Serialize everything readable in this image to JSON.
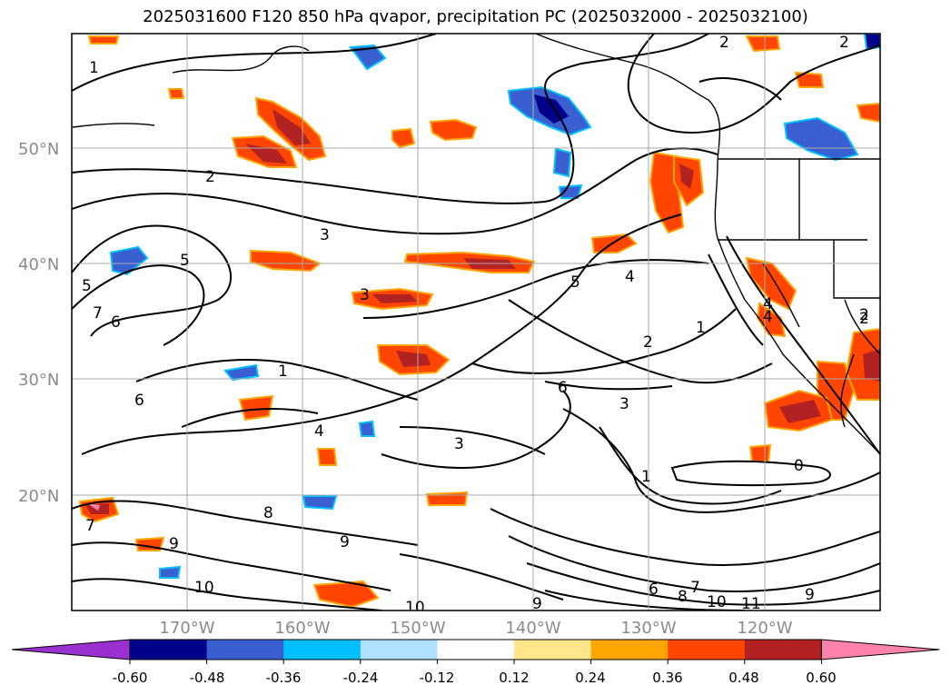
{
  "title": "2025031600 F120 850 hPa qvapor, precipitation PC (2025032000 - 2025032100)",
  "lat_labels": [
    "50°N",
    "40°N",
    "30°N",
    "20°N"
  ],
  "lon_labels": [
    "170°W",
    "160°W",
    "150°W",
    "140°W",
    "130°W",
    "120°W"
  ],
  "colorbar": {
    "tick_labels": [
      "-0.60",
      "-0.48",
      "-0.36",
      "-0.24",
      "-0.12",
      "0.12",
      "0.24",
      "0.36",
      "0.48",
      "0.60"
    ],
    "colors": [
      "#9b30d0",
      "#00008b",
      "#3a5fd0",
      "#00bfff",
      "#aee0ff",
      "#ffffff",
      "#ffe68a",
      "#ffa500",
      "#ff4500",
      "#b22222",
      "#ff82ab"
    ]
  },
  "contour_labels": [
    "1",
    "2",
    "2",
    "2",
    "3",
    "4",
    "5",
    "6",
    "7",
    "8",
    "9",
    "10",
    "11",
    "1",
    "2",
    "3",
    "4",
    "5",
    "6",
    "7",
    "0",
    "1",
    "2",
    "3",
    "3",
    "6",
    "4",
    "5",
    "6",
    "7",
    "8",
    "9",
    "10",
    "9",
    "9",
    "10",
    "4",
    "1",
    "2"
  ],
  "chart_data": {
    "type": "map",
    "lat_range": [
      10,
      60
    ],
    "lon_range": [
      -180,
      -110
    ],
    "fields": [
      "850 hPa qvapor",
      "precipitation PC"
    ]
  }
}
